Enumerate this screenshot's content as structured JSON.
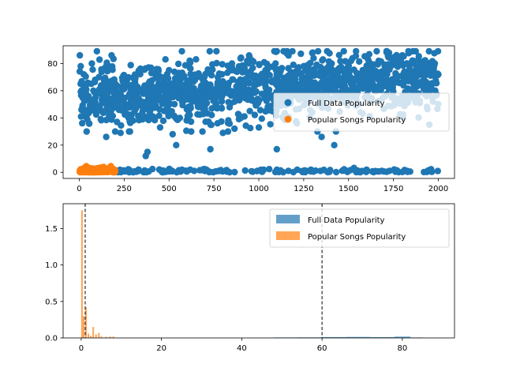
{
  "colors": {
    "blue": "#1f77b4",
    "orange": "#ff7f0e",
    "axis": "#000000"
  },
  "chart_data": [
    {
      "type": "scatter",
      "title": "",
      "xlabel": "",
      "ylabel": "",
      "xlim": [
        -90,
        2090
      ],
      "ylim": [
        -4.5,
        93
      ],
      "xticks": [
        0,
        250,
        500,
        750,
        1000,
        1250,
        1500,
        1750,
        2000
      ],
      "yticks": [
        0,
        20,
        40,
        60,
        80
      ],
      "legend": {
        "placement": "center-right",
        "entries": [
          "Full Data Popularity",
          "Popular Songs Popularity"
        ]
      },
      "series": [
        {
          "name": "Full Data Popularity",
          "color": "#1f77b4",
          "description_range": {
            "x": [
              0,
              2000
            ],
            "main_band_y": [
              30,
              89
            ],
            "low_band_y": [
              0,
              8
            ]
          },
          "sample_points": [
            [
              3,
              86
            ],
            [
              8,
              78
            ],
            [
              12,
              60
            ],
            [
              25,
              72
            ],
            [
              40,
              40
            ],
            [
              55,
              36
            ],
            [
              70,
              80
            ],
            [
              90,
              55
            ],
            [
              110,
              70
            ],
            [
              135,
              44
            ],
            [
              150,
              26
            ],
            [
              180,
              86
            ],
            [
              200,
              30
            ],
            [
              210,
              37
            ],
            [
              230,
              29
            ],
            [
              275,
              40
            ],
            [
              300,
              38
            ],
            [
              330,
              2
            ],
            [
              370,
              12
            ],
            [
              380,
              15
            ],
            [
              410,
              41
            ],
            [
              450,
              33
            ],
            [
              480,
              83
            ],
            [
              520,
              28
            ],
            [
              540,
              20
            ],
            [
              560,
              40
            ],
            [
              600,
              61
            ],
            [
              650,
              83
            ],
            [
              700,
              47
            ],
            [
              730,
              17
            ],
            [
              770,
              36
            ],
            [
              800,
              29
            ],
            [
              850,
              75
            ],
            [
              900,
              40
            ],
            [
              950,
              45
            ],
            [
              1000,
              33
            ],
            [
              1050,
              48
            ],
            [
              1100,
              17
            ],
            [
              1150,
              52
            ],
            [
              1200,
              62
            ],
            [
              1250,
              78
            ],
            [
              1300,
              88
            ],
            [
              1330,
              89
            ],
            [
              1350,
              26
            ],
            [
              1420,
              20
            ],
            [
              1450,
              58
            ],
            [
              1500,
              72
            ],
            [
              1550,
              68
            ],
            [
              1600,
              77
            ],
            [
              1650,
              70
            ],
            [
              1700,
              75
            ],
            [
              1750,
              81
            ],
            [
              1800,
              86
            ],
            [
              1850,
              80
            ],
            [
              1900,
              77
            ],
            [
              1950,
              35
            ],
            [
              1980,
              80
            ],
            [
              2000,
              72
            ]
          ]
        },
        {
          "name": "Popular Songs Popularity",
          "color": "#ff7f0e",
          "description_range": {
            "x": [
              0,
              200
            ],
            "y": [
              0,
              8
            ]
          }
        }
      ]
    },
    {
      "type": "histogram",
      "title": "",
      "xlabel": "",
      "ylabel": "",
      "xlim": [
        -4.5,
        93
      ],
      "ylim": [
        0,
        1.84
      ],
      "xticks": [
        0,
        20,
        40,
        60,
        80
      ],
      "yticks": [
        0.0,
        0.5,
        1.0,
        1.5
      ],
      "ytick_labels": [
        "0.0",
        "0.5",
        "1.0",
        "1.5"
      ],
      "legend": {
        "placement": "top-right",
        "entries": [
          "Full Data Popularity",
          "Popular Songs Popularity"
        ]
      },
      "vlines": [
        1,
        60
      ],
      "series": [
        {
          "name": "Full Data Popularity",
          "color": "#1f77b4",
          "bins": [
            {
              "x0": 48,
              "x1": 54,
              "density": 0.005
            },
            {
              "x0": 54,
              "x1": 60,
              "density": 0.008
            },
            {
              "x0": 60,
              "x1": 66,
              "density": 0.012
            },
            {
              "x0": 66,
              "x1": 72,
              "density": 0.014
            },
            {
              "x0": 72,
              "x1": 78,
              "density": 0.011
            },
            {
              "x0": 78,
              "x1": 82,
              "density": 0.018
            },
            {
              "x0": 82,
              "x1": 85,
              "density": 0.006
            }
          ]
        },
        {
          "name": "Popular Songs Popularity",
          "color": "#ff7f0e",
          "bins": [
            {
              "x0": 0,
              "x1": 0.4,
              "density": 1.75
            },
            {
              "x0": 0.4,
              "x1": 0.8,
              "density": 0.3
            },
            {
              "x0": 1.0,
              "x1": 1.4,
              "density": 0.42
            },
            {
              "x0": 1.6,
              "x1": 2.0,
              "density": 0.06
            },
            {
              "x0": 2.2,
              "x1": 2.6,
              "density": 0.03
            },
            {
              "x0": 2.8,
              "x1": 3.2,
              "density": 0.15
            },
            {
              "x0": 3.5,
              "x1": 3.9,
              "density": 0.05
            },
            {
              "x0": 4.2,
              "x1": 4.6,
              "density": 0.07
            },
            {
              "x0": 4.8,
              "x1": 5.2,
              "density": 0.02
            },
            {
              "x0": 6.0,
              "x1": 6.4,
              "density": 0.015
            },
            {
              "x0": 7.0,
              "x1": 7.4,
              "density": 0.02
            },
            {
              "x0": 7.8,
              "x1": 8.2,
              "density": 0.02
            }
          ]
        }
      ]
    }
  ]
}
